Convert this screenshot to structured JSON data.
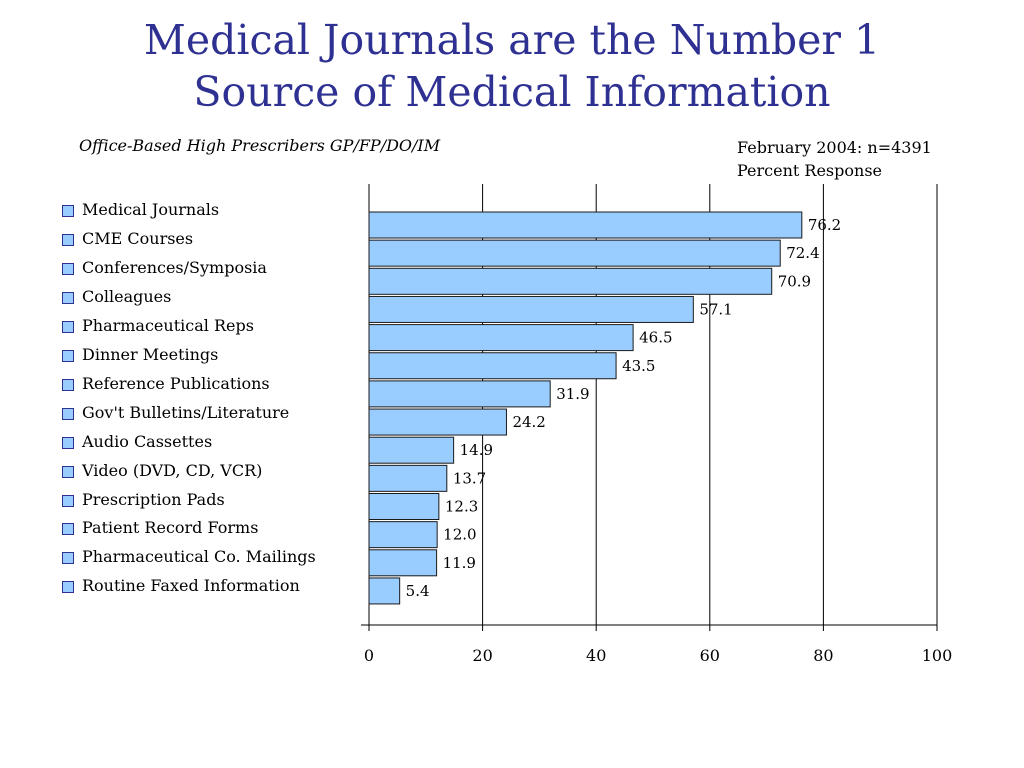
{
  "title_lines": [
    "Medical Journals are the Number 1",
    "Source of Medical Information"
  ],
  "subtitle": "Office-Based High Prescribers GP/FP/DO/IM",
  "source_lines": [
    "February 2004: n=4391",
    "Percent Response"
  ],
  "colors": {
    "title": "#2e3192",
    "bar_fill": "#99ccff",
    "bar_stroke": "#1a1a1a",
    "grid": "#000000"
  },
  "chart_data": {
    "type": "bar",
    "orientation": "horizontal",
    "categories": [
      "Medical Journals",
      "CME Courses",
      "Conferences/Symposia",
      "Colleagues",
      "Pharmaceutical Reps",
      "Dinner Meetings",
      "Reference Publications",
      "Gov't Bulletins/Literature",
      "Audio Cassettes",
      "Video (DVD, CD, VCR)",
      "Prescription Pads",
      "Patient Record Forms",
      "Pharmaceutical Co. Mailings",
      "Routine Faxed Information"
    ],
    "values": [
      76.2,
      72.4,
      70.9,
      57.1,
      46.5,
      43.5,
      31.9,
      24.2,
      14.9,
      13.7,
      12.3,
      12.0,
      11.9,
      5.4
    ],
    "value_labels": [
      "76.2",
      "72.4",
      "70.9",
      "57.1",
      "46.5",
      "43.5",
      "31.9",
      "24.2",
      "14.9",
      "13.7",
      "12.3",
      "12.0",
      "11.9",
      "5.4"
    ],
    "xlim": [
      0,
      100
    ],
    "xticks": [
      0,
      20,
      40,
      60,
      80,
      100
    ],
    "xtick_labels": [
      "0",
      "20",
      "40",
      "60",
      "80",
      "100"
    ],
    "grid": "vertical",
    "legend": "left"
  }
}
